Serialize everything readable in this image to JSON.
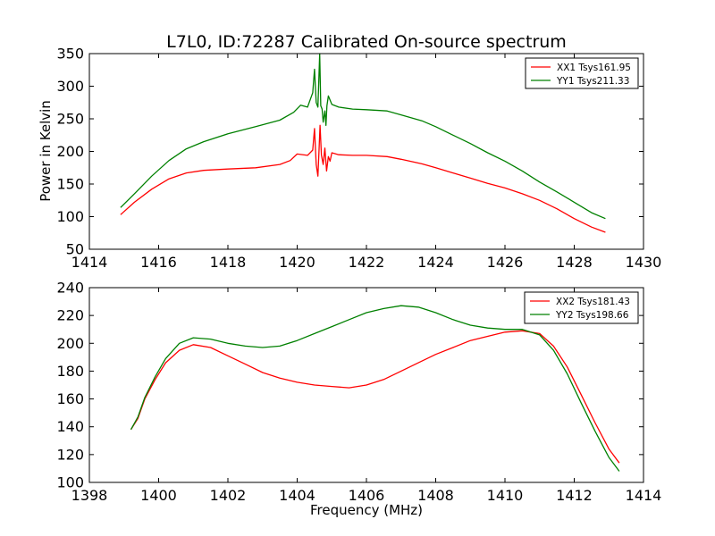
{
  "chart_data": [
    {
      "type": "line",
      "title": "L7L0, ID:72287 Calibrated On-source spectrum",
      "xlabel": "",
      "ylabel": "Power in Kelvin",
      "xlim": [
        1414,
        1430
      ],
      "ylim": [
        50,
        350
      ],
      "xticks": [
        "1414",
        "1416",
        "1418",
        "1420",
        "1422",
        "1424",
        "1426",
        "1428",
        "1430"
      ],
      "yticks": [
        "50",
        "100",
        "150",
        "200",
        "250",
        "300",
        "350"
      ],
      "legend_position": "top-right",
      "grid": false,
      "series": [
        {
          "name": "XX1 Tsys161.95",
          "color": "#ff0000",
          "x": [
            1414.9,
            1415.3,
            1415.8,
            1416.3,
            1416.8,
            1417.3,
            1418,
            1418.8,
            1419.5,
            1419.8,
            1420.0,
            1420.3,
            1420.45,
            1420.5,
            1420.55,
            1420.6,
            1420.63,
            1420.66,
            1420.7,
            1420.75,
            1420.8,
            1420.85,
            1420.9,
            1420.95,
            1421.0,
            1421.2,
            1421.6,
            1422,
            1422.6,
            1423,
            1423.6,
            1424,
            1424.5,
            1425,
            1425.5,
            1426,
            1426.5,
            1427,
            1427.5,
            1428,
            1428.5,
            1428.9
          ],
          "values": [
            103,
            122,
            142,
            158,
            167,
            171,
            173,
            175,
            180,
            186,
            196,
            194,
            202,
            235,
            180,
            162,
            200,
            240,
            195,
            180,
            205,
            170,
            192,
            185,
            198,
            195,
            194,
            194,
            192,
            188,
            181,
            175,
            167,
            159,
            151,
            144,
            135,
            125,
            112,
            97,
            84,
            76
          ]
        },
        {
          "name": "YY1 Tsys211.33",
          "color": "#008000",
          "x": [
            1414.9,
            1415.3,
            1415.8,
            1416.3,
            1416.8,
            1417.3,
            1418,
            1418.8,
            1419.5,
            1419.9,
            1420.1,
            1420.3,
            1420.45,
            1420.5,
            1420.55,
            1420.6,
            1420.65,
            1420.68,
            1420.72,
            1420.75,
            1420.8,
            1420.83,
            1420.86,
            1420.9,
            1421.0,
            1421.2,
            1421.6,
            1422,
            1422.6,
            1423,
            1423.6,
            1424,
            1424.5,
            1425,
            1425.5,
            1426,
            1426.5,
            1427,
            1427.5,
            1428,
            1428.5,
            1428.9
          ],
          "values": [
            114,
            135,
            162,
            186,
            204,
            215,
            227,
            238,
            248,
            260,
            271,
            268,
            290,
            326,
            275,
            268,
            350,
            270,
            265,
            245,
            262,
            240,
            270,
            285,
            272,
            268,
            265,
            264,
            262,
            256,
            247,
            238,
            225,
            212,
            198,
            185,
            170,
            153,
            138,
            122,
            106,
            97
          ]
        }
      ]
    },
    {
      "type": "line",
      "title": "",
      "xlabel": "Frequency (MHz)",
      "ylabel": "",
      "xlim": [
        1398,
        1414
      ],
      "ylim": [
        100,
        240
      ],
      "xticks": [
        "1398",
        "1400",
        "1402",
        "1404",
        "1406",
        "1408",
        "1410",
        "1412",
        "1414"
      ],
      "yticks": [
        "100",
        "120",
        "140",
        "160",
        "180",
        "200",
        "220",
        "240"
      ],
      "legend_position": "top-right",
      "grid": false,
      "series": [
        {
          "name": "XX2 Tsys181.43",
          "color": "#ff0000",
          "x": [
            1399.2,
            1399.4,
            1399.6,
            1399.9,
            1400.2,
            1400.6,
            1401,
            1401.5,
            1402,
            1402.5,
            1403,
            1403.5,
            1404,
            1404.5,
            1405,
            1405.5,
            1406,
            1406.5,
            1407,
            1407.5,
            1408,
            1408.5,
            1409,
            1409.5,
            1410,
            1410.5,
            1411,
            1411.4,
            1411.8,
            1412.2,
            1412.6,
            1413,
            1413.3
          ],
          "values": [
            138,
            146,
            160,
            174,
            186,
            195,
            199,
            197,
            191,
            185,
            179,
            175,
            172,
            170,
            169,
            168,
            170,
            174,
            180,
            186,
            192,
            197,
            202,
            205,
            208,
            209,
            207,
            198,
            183,
            163,
            143,
            124,
            114
          ]
        },
        {
          "name": "YY2 Tsys198.66",
          "color": "#008000",
          "x": [
            1399.2,
            1399.4,
            1399.6,
            1399.9,
            1400.2,
            1400.6,
            1401,
            1401.5,
            1402,
            1402.5,
            1403,
            1403.5,
            1404,
            1404.5,
            1405,
            1405.5,
            1406,
            1406.5,
            1407,
            1407.5,
            1408,
            1408.5,
            1409,
            1409.5,
            1410,
            1410.5,
            1411,
            1411.4,
            1411.8,
            1412.2,
            1412.6,
            1413,
            1413.3
          ],
          "values": [
            138,
            147,
            161,
            176,
            189,
            200,
            204,
            203,
            200,
            198,
            197,
            198,
            202,
            207,
            212,
            217,
            222,
            225,
            227,
            226,
            222,
            217,
            213,
            211,
            210,
            210,
            206,
            195,
            178,
            157,
            137,
            118,
            108
          ]
        }
      ]
    }
  ]
}
